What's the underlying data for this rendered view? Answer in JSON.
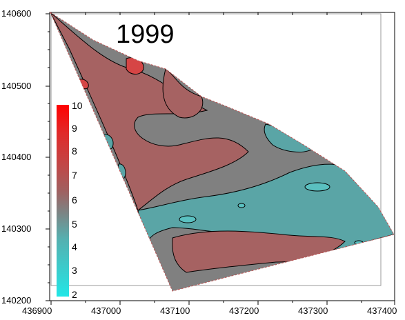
{
  "map": {
    "year_label": "1999",
    "x_ticks": [
      "436900",
      "437000",
      "437100",
      "437200",
      "437300",
      "437400"
    ],
    "y_ticks": [
      "140600",
      "140500",
      "140400",
      "140300",
      "140200"
    ],
    "colorbar_labels": [
      "10",
      "9",
      "8",
      "7",
      "6",
      "5",
      "4",
      "3",
      "2"
    ],
    "colors": {
      "high": "#ff0000",
      "red_band": "#d64545",
      "mid_red": "#a66262",
      "grey": "#808080",
      "teal": "#5aa5a6",
      "low": "#22e0e0"
    }
  }
}
